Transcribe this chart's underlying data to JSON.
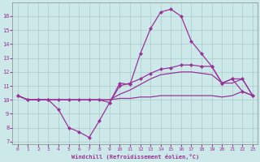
{
  "xlabel": "Windchill (Refroidissement éolien,°C)",
  "bg_color": "#cce8e8",
  "grid_color": "#aacccc",
  "line_color": "#993399",
  "xlim": [
    -0.5,
    23.5
  ],
  "ylim": [
    6.8,
    17.0
  ],
  "yticks": [
    7,
    8,
    9,
    10,
    11,
    12,
    13,
    14,
    15,
    16
  ],
  "xticks": [
    0,
    1,
    2,
    3,
    4,
    5,
    6,
    7,
    8,
    9,
    10,
    11,
    12,
    13,
    14,
    15,
    16,
    17,
    18,
    19,
    20,
    21,
    22,
    23
  ],
  "series": [
    {
      "x": [
        0,
        1,
        2,
        3,
        4,
        5,
        6,
        7,
        8,
        9,
        10,
        11,
        12,
        13,
        14,
        15,
        16,
        17,
        18,
        19,
        20,
        21,
        22,
        23
      ],
      "y": [
        10.3,
        10.0,
        10.0,
        10.0,
        9.3,
        8.0,
        7.7,
        7.3,
        8.5,
        9.8,
        11.2,
        11.1,
        13.3,
        15.1,
        16.3,
        16.5,
        16.0,
        14.2,
        13.3,
        12.4,
        11.2,
        11.5,
        10.6,
        10.3
      ],
      "marker": true
    },
    {
      "x": [
        0,
        1,
        2,
        3,
        4,
        5,
        6,
        7,
        8,
        9,
        10,
        11,
        12,
        13,
        14,
        15,
        16,
        17,
        18,
        19,
        20,
        21,
        22,
        23
      ],
      "y": [
        10.3,
        10.0,
        10.0,
        10.0,
        10.0,
        10.0,
        10.0,
        10.0,
        10.0,
        10.0,
        10.1,
        10.1,
        10.2,
        10.2,
        10.3,
        10.3,
        10.3,
        10.3,
        10.3,
        10.3,
        10.2,
        10.3,
        10.6,
        10.3
      ],
      "marker": false
    },
    {
      "x": [
        0,
        1,
        2,
        3,
        4,
        5,
        6,
        7,
        8,
        9,
        10,
        11,
        12,
        13,
        14,
        15,
        16,
        17,
        18,
        19,
        20,
        21,
        22,
        23
      ],
      "y": [
        10.3,
        10.0,
        10.0,
        10.0,
        10.0,
        10.0,
        10.0,
        10.0,
        10.0,
        10.0,
        10.4,
        10.7,
        11.1,
        11.5,
        11.8,
        11.9,
        12.0,
        12.0,
        11.9,
        11.8,
        11.2,
        11.2,
        11.5,
        10.3
      ],
      "marker": false
    },
    {
      "x": [
        0,
        1,
        2,
        3,
        4,
        5,
        6,
        7,
        8,
        9,
        10,
        11,
        12,
        13,
        14,
        15,
        16,
        17,
        18,
        19,
        20,
        21,
        22,
        23
      ],
      "y": [
        10.3,
        10.0,
        10.0,
        10.0,
        10.0,
        10.0,
        10.0,
        10.0,
        10.0,
        9.8,
        11.0,
        11.2,
        11.5,
        11.9,
        12.2,
        12.3,
        12.5,
        12.5,
        12.4,
        12.4,
        11.2,
        11.5,
        11.5,
        10.3
      ],
      "marker": true
    }
  ]
}
